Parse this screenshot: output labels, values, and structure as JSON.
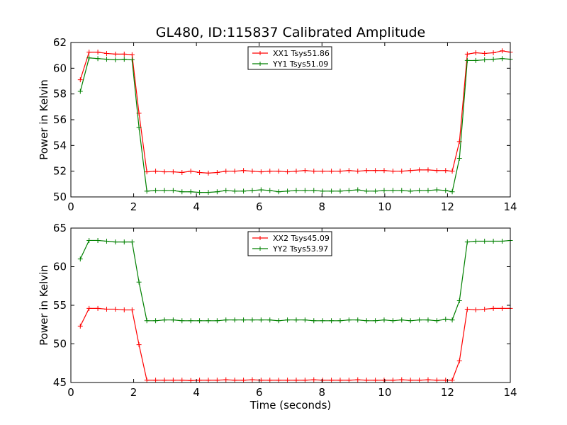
{
  "figure_title": "GL480, ID:115837 Calibrated Amplitude",
  "chart_data": [
    {
      "type": "line",
      "xlabel": "",
      "ylabel": "Power in Kelvin",
      "xlim": [
        0,
        14
      ],
      "ylim": [
        50,
        62
      ],
      "xticks": [
        0,
        2,
        4,
        6,
        8,
        10,
        12,
        14
      ],
      "yticks": [
        50,
        52,
        54,
        56,
        58,
        60,
        62
      ],
      "grid": false,
      "legend_position": "top-center",
      "x": [
        0.3,
        0.58,
        0.86,
        1.14,
        1.42,
        1.7,
        1.95,
        2.17,
        2.42,
        2.7,
        2.98,
        3.26,
        3.54,
        3.82,
        4.1,
        4.38,
        4.66,
        4.94,
        5.22,
        5.5,
        5.78,
        6.06,
        6.34,
        6.62,
        6.9,
        7.18,
        7.46,
        7.74,
        8.02,
        8.3,
        8.58,
        8.86,
        9.14,
        9.42,
        9.7,
        9.98,
        10.26,
        10.54,
        10.82,
        11.1,
        11.38,
        11.66,
        11.94,
        12.15,
        12.38,
        12.63,
        12.9,
        13.18,
        13.46,
        13.74,
        14.0
      ],
      "series": [
        {
          "name": "XX1 Tsys51.86",
          "color": "#ff0000",
          "values": [
            59.1,
            61.25,
            61.25,
            61.15,
            61.1,
            61.1,
            61.05,
            56.5,
            51.95,
            52.0,
            51.95,
            51.95,
            51.9,
            52.0,
            51.9,
            51.85,
            51.9,
            52.0,
            52.0,
            52.05,
            52.0,
            51.95,
            52.0,
            52.0,
            51.95,
            52.0,
            52.05,
            52.0,
            52.0,
            52.0,
            52.0,
            52.05,
            52.0,
            52.05,
            52.05,
            52.05,
            52.0,
            52.0,
            52.05,
            52.1,
            52.1,
            52.05,
            52.05,
            52.0,
            54.3,
            61.1,
            61.2,
            61.15,
            61.2,
            61.35,
            61.25
          ]
        },
        {
          "name": "YY1 Tsys51.09",
          "color": "#008000",
          "values": [
            58.2,
            60.8,
            60.75,
            60.7,
            60.65,
            60.7,
            60.65,
            55.4,
            50.45,
            50.5,
            50.5,
            50.5,
            50.4,
            50.4,
            50.35,
            50.35,
            50.4,
            50.5,
            50.45,
            50.45,
            50.5,
            50.55,
            50.5,
            50.4,
            50.45,
            50.5,
            50.5,
            50.5,
            50.45,
            50.45,
            50.45,
            50.5,
            50.55,
            50.45,
            50.45,
            50.5,
            50.5,
            50.5,
            50.45,
            50.5,
            50.5,
            50.55,
            50.5,
            50.4,
            53.0,
            60.6,
            60.6,
            60.65,
            60.7,
            60.75,
            60.7
          ]
        }
      ]
    },
    {
      "type": "line",
      "xlabel": "Time (seconds)",
      "ylabel": "Power in Kelvin",
      "xlim": [
        0,
        14
      ],
      "ylim": [
        45,
        65
      ],
      "xticks": [
        0,
        2,
        4,
        6,
        8,
        10,
        12,
        14
      ],
      "yticks": [
        45,
        50,
        55,
        60,
        65
      ],
      "grid": false,
      "legend_position": "top-center",
      "x": [
        0.3,
        0.58,
        0.86,
        1.14,
        1.42,
        1.7,
        1.95,
        2.17,
        2.42,
        2.7,
        2.98,
        3.26,
        3.54,
        3.82,
        4.1,
        4.38,
        4.66,
        4.94,
        5.22,
        5.5,
        5.78,
        6.06,
        6.34,
        6.62,
        6.9,
        7.18,
        7.46,
        7.74,
        8.02,
        8.3,
        8.58,
        8.86,
        9.14,
        9.42,
        9.7,
        9.98,
        10.26,
        10.54,
        10.82,
        11.1,
        11.38,
        11.66,
        11.94,
        12.15,
        12.38,
        12.63,
        12.9,
        13.18,
        13.46,
        13.74,
        14.0
      ],
      "series": [
        {
          "name": "XX2 Tsys45.09",
          "color": "#ff0000",
          "values": [
            52.3,
            54.6,
            54.6,
            54.5,
            54.5,
            54.4,
            54.4,
            49.9,
            45.3,
            45.3,
            45.3,
            45.3,
            45.3,
            45.25,
            45.3,
            45.3,
            45.3,
            45.35,
            45.3,
            45.3,
            45.35,
            45.3,
            45.3,
            45.3,
            45.3,
            45.3,
            45.3,
            45.35,
            45.3,
            45.3,
            45.3,
            45.3,
            45.35,
            45.3,
            45.3,
            45.3,
            45.3,
            45.35,
            45.3,
            45.3,
            45.35,
            45.3,
            45.3,
            45.3,
            47.8,
            54.5,
            54.4,
            54.5,
            54.6,
            54.6,
            54.6
          ]
        },
        {
          "name": "YY2 Tsys53.97",
          "color": "#008000",
          "values": [
            61.0,
            63.4,
            63.4,
            63.3,
            63.2,
            63.2,
            63.2,
            58.0,
            53.0,
            53.0,
            53.1,
            53.1,
            53.0,
            53.0,
            53.0,
            53.0,
            53.0,
            53.1,
            53.1,
            53.1,
            53.1,
            53.1,
            53.1,
            53.0,
            53.1,
            53.1,
            53.1,
            53.0,
            53.0,
            53.0,
            53.0,
            53.1,
            53.1,
            53.0,
            53.0,
            53.1,
            53.0,
            53.1,
            53.0,
            53.1,
            53.1,
            53.0,
            53.2,
            53.1,
            55.6,
            63.2,
            63.3,
            63.3,
            63.3,
            63.3,
            63.4
          ]
        }
      ]
    }
  ]
}
